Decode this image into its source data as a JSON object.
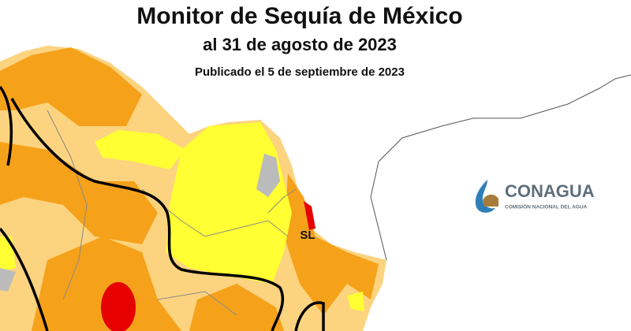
{
  "header": {
    "title": "Monitor de Sequía de México",
    "subtitle": "al 31 de agosto de 2023",
    "published": "Publicado el 5 de septiembre de 2023"
  },
  "map": {
    "labels": [
      "SL"
    ]
  },
  "logo": {
    "name": "CONAGUA",
    "tagline": "COMISIÓN NACIONAL DEL AGUA"
  }
}
